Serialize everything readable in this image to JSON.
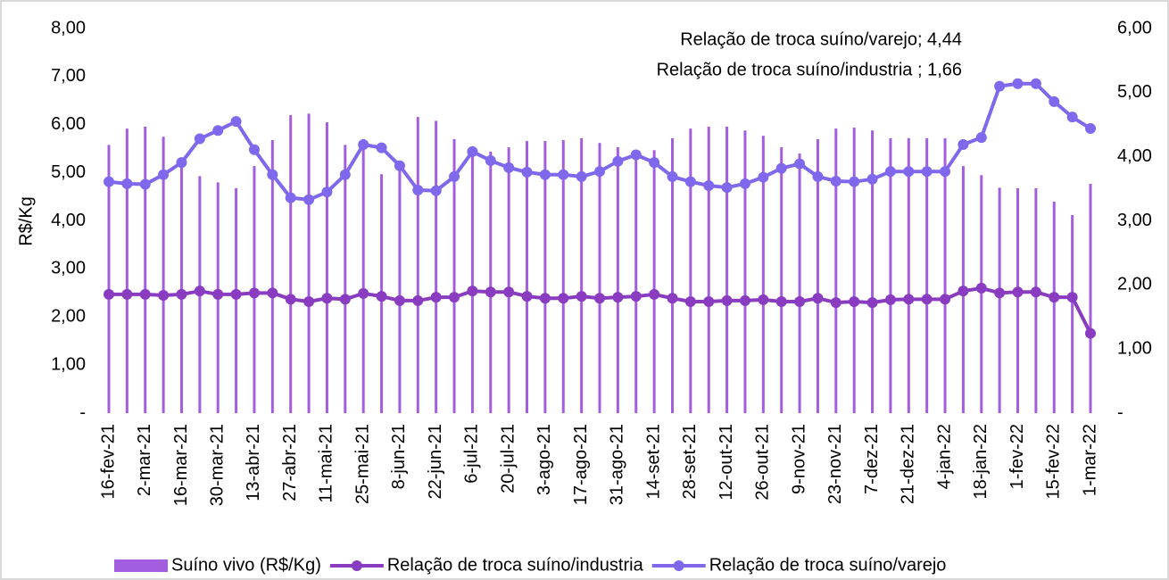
{
  "chart_data": {
    "type": "combo",
    "y_label": "R$/Kg",
    "categories": [
      "16-fev-21",
      null,
      "2-mar-21",
      null,
      "16-mar-21",
      null,
      "30-mar-21",
      null,
      "13-abr-21",
      null,
      "27-abr-21",
      null,
      "11-mai-21",
      null,
      "25-mai-21",
      null,
      "8-jun-21",
      null,
      "22-jun-21",
      null,
      "6-jul-21",
      null,
      "20-jul-21",
      null,
      "3-ago-21",
      null,
      "17-ago-21",
      null,
      "31-ago-21",
      null,
      "14-set-21",
      null,
      "28-set-21",
      null,
      "12-out-21",
      null,
      "26-out-21",
      null,
      "9-nov-21",
      null,
      "23-nov-21",
      null,
      "7-dez-21",
      null,
      "21-dez-21",
      null,
      "4-jan-22",
      null,
      "18-jan-22",
      null,
      "1-fev-22",
      null,
      "15-fev-22",
      null,
      "1-mar-22"
    ],
    "series": [
      {
        "name": "Suíno vivo (R$/Kg)",
        "type": "bar",
        "color": "#a35ee0",
        "axis": "y",
        "values": [
          5.58,
          5.92,
          5.96,
          5.75,
          5.19,
          4.93,
          4.8,
          4.68,
          5.14,
          5.68,
          6.2,
          6.23,
          6.05,
          5.58,
          5.7,
          4.97,
          5.1,
          6.16,
          6.08,
          5.7,
          5.53,
          5.44,
          5.53,
          5.66,
          5.66,
          5.68,
          5.72,
          5.62,
          5.53,
          5.44,
          5.47,
          5.72,
          5.92,
          5.96,
          5.96,
          5.88,
          5.77,
          5.53,
          5.4,
          5.7,
          5.92,
          5.94,
          5.88,
          5.72,
          5.72,
          5.72,
          5.72,
          5.14,
          4.95,
          4.69,
          4.68,
          4.68,
          4.4,
          4.12,
          4.77
        ]
      },
      {
        "name": "Relação de troca suíno/industria",
        "type": "line",
        "color": "#8a3cc0",
        "axis": "y",
        "values": [
          2.47,
          2.47,
          2.47,
          2.45,
          2.47,
          2.54,
          2.47,
          2.47,
          2.5,
          2.5,
          2.37,
          2.32,
          2.39,
          2.37,
          2.49,
          2.43,
          2.34,
          2.34,
          2.41,
          2.41,
          2.54,
          2.52,
          2.52,
          2.43,
          2.39,
          2.39,
          2.43,
          2.39,
          2.41,
          2.43,
          2.47,
          2.39,
          2.32,
          2.32,
          2.34,
          2.34,
          2.36,
          2.32,
          2.32,
          2.39,
          2.3,
          2.32,
          2.3,
          2.36,
          2.37,
          2.37,
          2.37,
          2.54,
          2.6,
          2.5,
          2.52,
          2.52,
          2.41,
          2.41,
          1.66
        ]
      },
      {
        "name": "Relação de troca suíno/varejo",
        "type": "line",
        "color": "#7f68ec",
        "axis": "y2",
        "values": [
          3.61,
          3.58,
          3.57,
          3.72,
          3.91,
          4.28,
          4.41,
          4.55,
          4.11,
          3.72,
          3.36,
          3.33,
          3.45,
          3.72,
          4.19,
          4.14,
          3.86,
          3.48,
          3.47,
          3.69,
          4.08,
          3.94,
          3.83,
          3.76,
          3.72,
          3.72,
          3.69,
          3.77,
          3.93,
          4.03,
          3.91,
          3.69,
          3.61,
          3.55,
          3.52,
          3.58,
          3.68,
          3.82,
          3.89,
          3.69,
          3.62,
          3.61,
          3.65,
          3.77,
          3.77,
          3.77,
          3.77,
          4.19,
          4.3,
          5.1,
          5.14,
          5.14,
          4.86,
          4.62,
          4.44
        ]
      }
    ],
    "annotations": [
      "Relação de troca suíno/varejo; 4,44",
      "Relação de troca suíno/industria ; 1,66"
    ],
    "ylim": [
      0,
      8
    ],
    "yticks": [
      {
        "value": 0,
        "label": "-"
      },
      {
        "value": 1,
        "label": "1,00"
      },
      {
        "value": 2,
        "label": "2,00"
      },
      {
        "value": 3,
        "label": "3,00"
      },
      {
        "value": 4,
        "label": "4,00"
      },
      {
        "value": 5,
        "label": "5,00"
      },
      {
        "value": 6,
        "label": "6,00"
      },
      {
        "value": 7,
        "label": "7,00"
      },
      {
        "value": 8,
        "label": "8,00"
      }
    ],
    "y2lim": [
      0,
      6
    ],
    "y2ticks": [
      {
        "value": 0,
        "label": "-"
      },
      {
        "value": 1,
        "label": "1,00"
      },
      {
        "value": 2,
        "label": "2,00"
      },
      {
        "value": 3,
        "label": "3,00"
      },
      {
        "value": 4,
        "label": "4,00"
      },
      {
        "value": 5,
        "label": "5,00"
      },
      {
        "value": 6,
        "label": "6,00"
      }
    ],
    "legend": "bottom"
  }
}
